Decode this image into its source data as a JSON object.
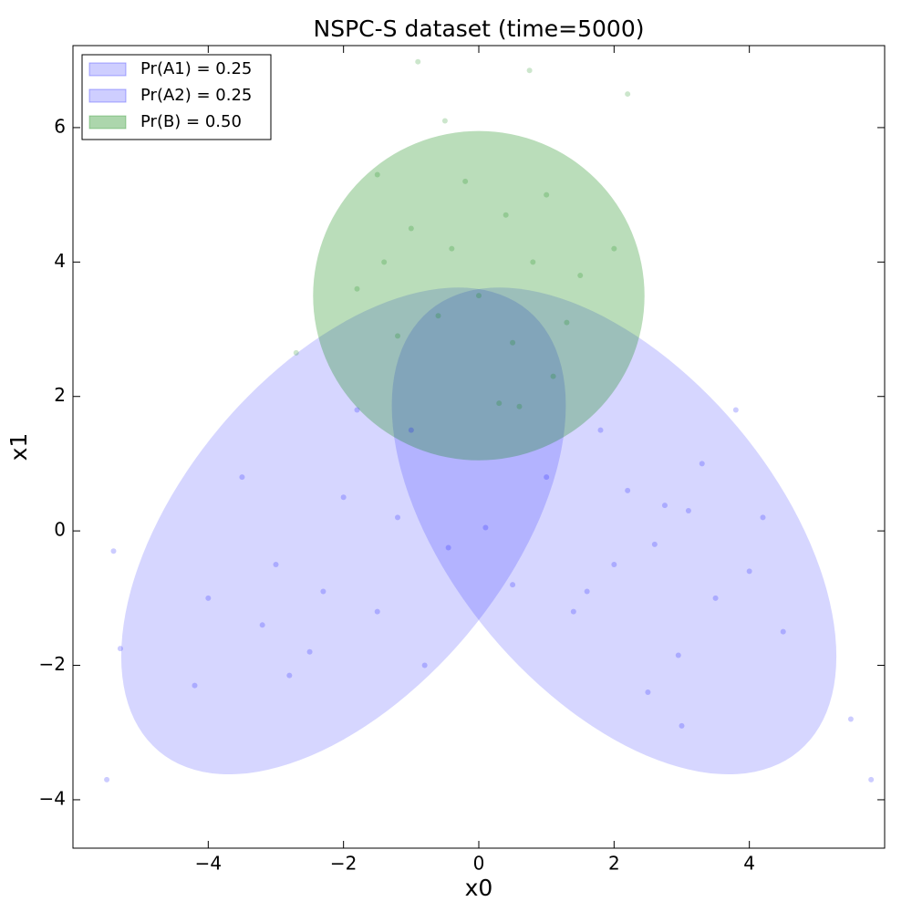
{
  "chart_data": {
    "type": "scatter",
    "title": "NSPC-S dataset (time=5000)",
    "x_label": "x0",
    "y_label": "x1",
    "xlim": [
      -6,
      6
    ],
    "ylim": [
      -4.72,
      7.22
    ],
    "xticks": [
      {
        "value": -4,
        "label": "−4"
      },
      {
        "value": -2,
        "label": "−2"
      },
      0,
      2,
      4
    ],
    "yticks": [
      {
        "value": -4,
        "label": "−4"
      },
      {
        "value": -2,
        "label": "−2"
      },
      0,
      2,
      4,
      6
    ],
    "legend": "upper left",
    "ellipses": [
      {
        "name": "Pr(A1) = 0.25",
        "color": "#0000ff",
        "alpha": 0.16,
        "center": [
          -2.0,
          0.0
        ],
        "width": 8.5,
        "height": 4.8,
        "angle": 50
      },
      {
        "name": "Pr(A2) = 0.25",
        "color": "#0000ff",
        "alpha": 0.16,
        "center": [
          2.0,
          0.0
        ],
        "width": 8.5,
        "height": 4.8,
        "angle": 130
      },
      {
        "name": "Pr(B) = 0.50",
        "color": "#008000",
        "alpha": 0.27,
        "center": [
          0.0,
          3.5
        ],
        "width": 4.9,
        "height": 4.9,
        "angle": 0
      }
    ],
    "series": [
      {
        "color": "#0000ff",
        "alpha": 0.2,
        "x": [
          2.75,
          2.95,
          5.5,
          -5.4,
          -5.3,
          -2.8,
          1.4,
          -0.45,
          0.1,
          3.3,
          4.2,
          2.0,
          3.5,
          1.8,
          2.5,
          4.5,
          -3.0,
          -2.0,
          -1.5,
          -4.0,
          -3.5,
          -1.0,
          -2.5,
          -4.2,
          0.5,
          1.0,
          3.0,
          2.2,
          -0.8,
          5.8,
          -5.5,
          -1.8,
          3.8,
          2.6,
          3.1,
          1.6,
          4.0,
          -2.3,
          -3.2,
          -1.2
        ],
        "y": [
          0.38,
          -1.85,
          -2.8,
          -0.3,
          -1.75,
          -2.15,
          -1.2,
          -0.25,
          0.05,
          1.0,
          0.2,
          -0.5,
          -1.0,
          1.5,
          -2.4,
          -1.5,
          -0.5,
          0.5,
          -1.2,
          -1.0,
          0.8,
          1.5,
          -1.8,
          -2.3,
          -0.8,
          0.8,
          -2.9,
          0.6,
          -2.0,
          -3.7,
          -3.7,
          1.8,
          1.8,
          -0.2,
          0.3,
          -0.9,
          -0.6,
          -0.9,
          -1.4,
          0.2
        ]
      },
      {
        "color": "#008000",
        "alpha": 0.2,
        "x": [
          0.0,
          -1.0,
          1.0,
          0.5,
          -0.5,
          1.5,
          -1.8,
          2.0,
          -0.2,
          0.8,
          -1.2,
          0.3,
          -0.9,
          0.75,
          -2.7,
          2.2,
          -0.4,
          1.1,
          -1.5,
          0.6,
          -0.6,
          0.4,
          1.3,
          -1.4
        ],
        "y": [
          3.5,
          4.5,
          5.0,
          2.8,
          6.1,
          3.8,
          3.6,
          4.2,
          5.2,
          4.0,
          2.9,
          1.9,
          6.98,
          6.85,
          2.65,
          6.5,
          4.2,
          2.3,
          5.3,
          1.85,
          3.2,
          4.7,
          3.1,
          4.0
        ]
      }
    ]
  }
}
